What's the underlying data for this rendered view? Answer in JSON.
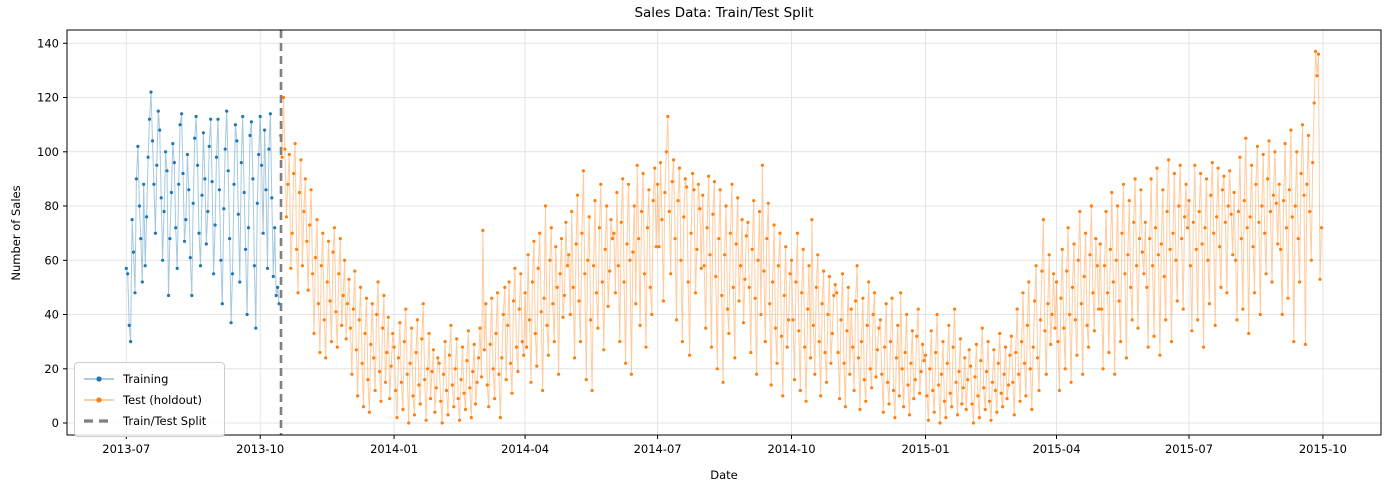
{
  "title": "Sales Data: Train/Test Split",
  "axes": {
    "xlabel": "Date",
    "ylabel": "Number of Sales"
  },
  "legend": {
    "position": "lower left",
    "items": [
      {
        "label": "Training",
        "color": "#1f77b4",
        "style": "line-marker"
      },
      {
        "label": "Test (holdout)",
        "color": "#ff7f0e",
        "style": "line-marker"
      },
      {
        "label": "Train/Test Split",
        "color": "#808080",
        "style": "dashed"
      }
    ]
  },
  "chart_data": {
    "type": "line",
    "title": "Sales Data: Train/Test Split",
    "xlabel": "Date",
    "ylabel": "Number of Sales",
    "x_unit": "days since 2013-07-01 (daily samples)",
    "xlim_days": [
      -40.7,
      861.9
    ],
    "ylim": [
      -4.42,
      144.9
    ],
    "yticks": [
      0,
      20,
      40,
      60,
      80,
      100,
      120,
      140
    ],
    "xticks": [
      {
        "day": 0,
        "label": "2013-07"
      },
      {
        "day": 92,
        "label": "2013-10"
      },
      {
        "day": 184,
        "label": "2014-01"
      },
      {
        "day": 274,
        "label": "2014-04"
      },
      {
        "day": 365,
        "label": "2014-07"
      },
      {
        "day": 457,
        "label": "2014-10"
      },
      {
        "day": 549,
        "label": "2015-01"
      },
      {
        "day": 639,
        "label": "2015-04"
      },
      {
        "day": 730,
        "label": "2015-07"
      },
      {
        "day": 822,
        "label": "2015-10"
      }
    ],
    "grid": true,
    "grid_color": "#e4e4e4",
    "legend_position": "lower left",
    "split_day": 106.3,
    "split_date": "2013-10-15",
    "split_color": "#808080",
    "split_style": "dashed",
    "marker": "o",
    "marker_radius": 1.6,
    "line_opacity": 0.4,
    "series": [
      {
        "name": "Training",
        "color": "#1f77b4",
        "start_day": 0,
        "start_date": "2013-07-01",
        "values": [
          57,
          55,
          36,
          30,
          75,
          63,
          48,
          90,
          102,
          80,
          68,
          52,
          88,
          58,
          76,
          98,
          112,
          122,
          104,
          88,
          70,
          95,
          115,
          108,
          83,
          60,
          78,
          100,
          93,
          47,
          68,
          85,
          103,
          96,
          72,
          57,
          88,
          110,
          114,
          92,
          67,
          75,
          99,
          86,
          61,
          47,
          81,
          105,
          113,
          95,
          70,
          58,
          84,
          107,
          90,
          66,
          78,
          102,
          112,
          89,
          55,
          73,
          98,
          112,
          86,
          60,
          44,
          79,
          101,
          115,
          93,
          68,
          37,
          55,
          88,
          110,
          104,
          77,
          52,
          96,
          113,
          85,
          64,
          40,
          72,
          106,
          111,
          90,
          58,
          35,
          81,
          99,
          113,
          95,
          70,
          108,
          86,
          57,
          101,
          114,
          83,
          54,
          72,
          47,
          50,
          44
        ]
      },
      {
        "name": "Test (holdout)",
        "color": "#ff7f0e",
        "start_day": 106,
        "start_date": "2013-10-15",
        "values": [
          106,
          98,
          120,
          101,
          76,
          88,
          99,
          57,
          70,
          92,
          103,
          64,
          48,
          85,
          97,
          58,
          78,
          90,
          67,
          49,
          73,
          86,
          55,
          33,
          61,
          75,
          44,
          26,
          58,
          70,
          38,
          24,
          52,
          67,
          45,
          30,
          63,
          72,
          41,
          28,
          55,
          68,
          36,
          47,
          60,
          31,
          44,
          53,
          35,
          18,
          42,
          56,
          27,
          10,
          38,
          50,
          22,
          6,
          33,
          46,
          16,
          4,
          29,
          44,
          24,
          12,
          40,
          52,
          19,
          8,
          35,
          47,
          15,
          26,
          39,
          9,
          21,
          33,
          28,
          12,
          2,
          24,
          37,
          15,
          5,
          30,
          42,
          18,
          0,
          22,
          35,
          10,
          3,
          26,
          38,
          14,
          7,
          31,
          44,
          16,
          1,
          20,
          33,
          9,
          19,
          27,
          4,
          13,
          24,
          22,
          8,
          0,
          18,
          30,
          12,
          3,
          25,
          36,
          14,
          6,
          20,
          31,
          9,
          1,
          16,
          28,
          11,
          5,
          23,
          34,
          13,
          2,
          19,
          29,
          7,
          15,
          24,
          35,
          17,
          71,
          27,
          44,
          14,
          6,
          29,
          46,
          20,
          9,
          33,
          48,
          18,
          2,
          24,
          40,
          50,
          16,
          36,
          52,
          22,
          11,
          45,
          57,
          28,
          19,
          42,
          55,
          30,
          25,
          48,
          28,
          62,
          38,
          15,
          52,
          67,
          33,
          21,
          57,
          70,
          41,
          12,
          46,
          80,
          36,
          25,
          60,
          72,
          44,
          30,
          65,
          50,
          18,
          55,
          68,
          39,
          47,
          74,
          58,
          62,
          40,
          78,
          50,
          24,
          66,
          84,
          45,
          30,
          70,
          93,
          55,
          16,
          60,
          76,
          38,
          12,
          58,
          82,
          48,
          35,
          72,
          88,
          52,
          27,
          64,
          80,
          43,
          56,
          75,
          68,
          70,
          48,
          85,
          58,
          30,
          74,
          90,
          52,
          22,
          66,
          88,
          60,
          18,
          63,
          80,
          44,
          95,
          68,
          36,
          78,
          92,
          55,
          28,
          72,
          86,
          50,
          40,
          82,
          94,
          65,
          88,
          65,
          96,
          75,
          45,
          85,
          100,
          113,
          78,
          55,
          89,
          97,
          68,
          38,
          82,
          94,
          60,
          30,
          76,
          90,
          87,
          52,
          25,
          70,
          92,
          86,
          48,
          64,
          88,
          79,
          57,
          84,
          58,
          35,
          72,
          91,
          62,
          28,
          77,
          89,
          54,
          20,
          68,
          86,
          47,
          15,
          62,
          80,
          42,
          33,
          70,
          88,
          50,
          24,
          66,
          83,
          45,
          58,
          75,
          37,
          53,
          69,
          74,
          50,
          26,
          64,
          82,
          46,
          18,
          60,
          78,
          40,
          95,
          56,
          30,
          68,
          81,
          44,
          14,
          52,
          73,
          35,
          22,
          58,
          70,
          32,
          10,
          47,
          65,
          28,
          38,
          55,
          60,
          38,
          16,
          52,
          70,
          34,
          12,
          48,
          64,
          28,
          8,
          42,
          58,
          24,
          75,
          36,
          18,
          50,
          62,
          30,
          10,
          44,
          56,
          26,
          15,
          40,
          54,
          22,
          33,
          47,
          51,
          48,
          26,
          9,
          38,
          55,
          22,
          6,
          34,
          50,
          18,
          42,
          28,
          12,
          45,
          58,
          24,
          5,
          30,
          46,
          16,
          8,
          36,
          52,
          20,
          13,
          40,
          48,
          17,
          27,
          35,
          38,
          18,
          4,
          28,
          44,
          15,
          7,
          30,
          46,
          12,
          2,
          24,
          36,
          10,
          48,
          20,
          6,
          26,
          40,
          14,
          3,
          22,
          34,
          9,
          16,
          32,
          42,
          11,
          19,
          29,
          23,
          25,
          10,
          1,
          20,
          34,
          12,
          4,
          26,
          40,
          14,
          0,
          18,
          30,
          8,
          2,
          22,
          36,
          11,
          6,
          28,
          42,
          15,
          3,
          19,
          31,
          7,
          13,
          24,
          5,
          16,
          27,
          21,
          7,
          0,
          17,
          29,
          10,
          2,
          23,
          35,
          13,
          5,
          19,
          30,
          8,
          1,
          15,
          27,
          12,
          4,
          22,
          33,
          11,
          6,
          18,
          28,
          9,
          14,
          25,
          32,
          15,
          3,
          26,
          42,
          18,
          8,
          30,
          48,
          22,
          10,
          36,
          52,
          20,
          5,
          28,
          45,
          58,
          24,
          12,
          38,
          56,
          75,
          34,
          18,
          44,
          62,
          29,
          40,
          55,
          35,
          52,
          30,
          12,
          46,
          64,
          35,
          20,
          56,
          72,
          40,
          15,
          50,
          66,
          38,
          25,
          60,
          78,
          44,
          18,
          54,
          70,
          36,
          28,
          62,
          80,
          48,
          34,
          68,
          58,
          42,
          66,
          42,
          20,
          58,
          78,
          48,
          26,
          64,
          85,
          52,
          18,
          60,
          80,
          45,
          30,
          70,
          88,
          55,
          24,
          62,
          82,
          50,
          38,
          74,
          90,
          58,
          35,
          68,
          86,
          63,
          55,
          74,
          50,
          28,
          68,
          90,
          58,
          32,
          72,
          94,
          62,
          25,
          66,
          86,
          54,
          38,
          78,
          97,
          64,
          30,
          70,
          92,
          60,
          45,
          80,
          95,
          68,
          42,
          76,
          88,
          72,
          82,
          58,
          34,
          74,
          95,
          64,
          38,
          78,
          92,
          66,
          28,
          72,
          90,
          60,
          44,
          84,
          96,
          70,
          36,
          76,
          94,
          65,
          50,
          86,
          91,
          74,
          48,
          80,
          93,
          77,
          62,
          85,
          60,
          38,
          78,
          98,
          68,
          42,
          82,
          105,
          72,
          33,
          76,
          95,
          65,
          48,
          88,
          102,
          74,
          40,
          80,
          99,
          70,
          55,
          90,
          104,
          78,
          52,
          84,
          100,
          81,
          66,
          88,
          64,
          40,
          82,
          103,
          72,
          46,
          86,
          108,
          76,
          30,
          80,
          100,
          68,
          52,
          92,
          110,
          84,
          29,
          88,
          106,
          78,
          60,
          96,
          118,
          137,
          128,
          136,
          53,
          72
        ]
      }
    ]
  }
}
